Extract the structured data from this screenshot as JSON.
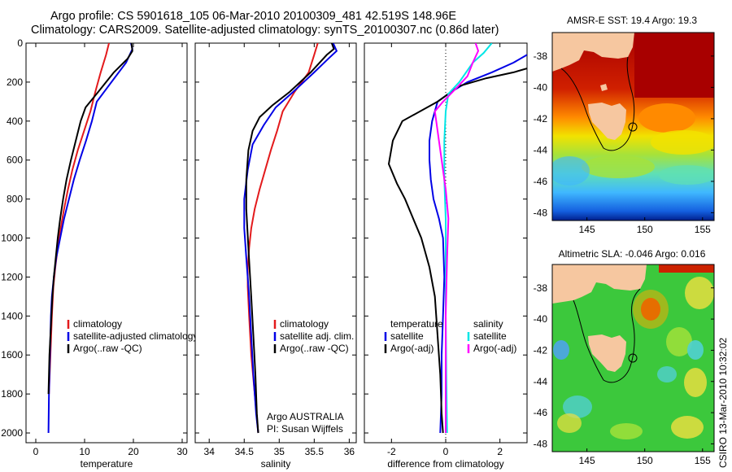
{
  "header": {
    "line1": "Argo profile: CS 5901618_105 06-Mar-2010 20100309_481 42.519S 148.96E",
    "line2": "Climatology: CARS2009. Satellite-adjusted climatology: synTS_20100307.nc (0.86d later)"
  },
  "footer": {
    "credit_line1": "Argo AUSTRALIA",
    "credit_line2": "PI: Susan Wijffels",
    "stamp": "CSIRO 13-Mar-2010 10:32:02"
  },
  "colors": {
    "climatology": "#e31a1c",
    "satellite": "#0000e6",
    "argo": "#000000",
    "salinity_satellite": "#00e6e6",
    "salinity_argo_adj": "#ff00ff",
    "land": "#f6c7a0"
  },
  "chart_data": [
    {
      "type": "line",
      "xlabel": "temperature",
      "xlim": [
        -2,
        31
      ],
      "ylim": [
        0,
        2050
      ],
      "y_reversed": true,
      "xticks": [
        "0",
        "10",
        "20",
        "30"
      ],
      "yticks": [
        "0",
        "200",
        "400",
        "600",
        "800",
        "1000",
        "1200",
        "1400",
        "1600",
        "1800",
        "2000"
      ],
      "legend_position": "bottom-right",
      "series": [
        {
          "name": "climatology",
          "color_key": "climatology",
          "points": [
            [
              15,
              0
            ],
            [
              14.4,
              60
            ],
            [
              13.3,
              150
            ],
            [
              12.2,
              250
            ],
            [
              11.2,
              350
            ],
            [
              9.9,
              450
            ],
            [
              8.6,
              550
            ],
            [
              7.5,
              650
            ],
            [
              6.6,
              750
            ],
            [
              5.8,
              850
            ],
            [
              5.1,
              950
            ],
            [
              4.5,
              1050
            ],
            [
              4,
              1150
            ],
            [
              3.6,
              1250
            ],
            [
              3.3,
              1400
            ],
            [
              3,
              1600
            ],
            [
              2.7,
              1800
            ]
          ]
        },
        {
          "name": "satellite-adjusted climatology",
          "color_key": "satellite",
          "points": [
            [
              19.5,
              0
            ],
            [
              19.8,
              30
            ],
            [
              18.5,
              100
            ],
            [
              15.5,
              200
            ],
            [
              12.5,
              300
            ],
            [
              11.5,
              400
            ],
            [
              10.3,
              500
            ],
            [
              9,
              600
            ],
            [
              7.8,
              700
            ],
            [
              6.8,
              800
            ],
            [
              5.8,
              900
            ],
            [
              5,
              1000
            ],
            [
              4.2,
              1100
            ],
            [
              3.7,
              1200
            ],
            [
              3.3,
              1300
            ],
            [
              3.1,
              1400
            ],
            [
              2.9,
              1600
            ],
            [
              2.7,
              1800
            ],
            [
              2.6,
              2000
            ]
          ]
        },
        {
          "name": "Argo(..raw -QC)",
          "color_key": "argo",
          "points": [
            [
              19.6,
              0
            ],
            [
              19.8,
              40
            ],
            [
              18.8,
              80
            ],
            [
              16,
              150
            ],
            [
              12.8,
              250
            ],
            [
              10.2,
              330
            ],
            [
              9.2,
              400
            ],
            [
              8.2,
              500
            ],
            [
              7.2,
              600
            ],
            [
              6.3,
              700
            ],
            [
              5.6,
              800
            ],
            [
              5,
              900
            ],
            [
              4.5,
              1000
            ],
            [
              4.1,
              1100
            ],
            [
              3.7,
              1200
            ],
            [
              3.4,
              1300
            ],
            [
              3.2,
              1400
            ],
            [
              3,
              1500
            ],
            [
              2.8,
              1600
            ],
            [
              2.7,
              1700
            ],
            [
              2.6,
              1800
            ]
          ]
        }
      ]
    },
    {
      "type": "line",
      "xlabel": "salinity",
      "xlim": [
        33.8,
        36.1
      ],
      "ylim": [
        0,
        2050
      ],
      "y_reversed": true,
      "xticks": [
        "34",
        "34.5",
        "35",
        "35.5",
        "36"
      ],
      "legend_position": "bottom-right",
      "series": [
        {
          "name": "climatology",
          "color_key": "climatology",
          "points": [
            [
              35.55,
              0
            ],
            [
              35.5,
              60
            ],
            [
              35.42,
              150
            ],
            [
              35.22,
              250
            ],
            [
              35.05,
              350
            ],
            [
              34.97,
              450
            ],
            [
              34.88,
              550
            ],
            [
              34.8,
              650
            ],
            [
              34.72,
              750
            ],
            [
              34.65,
              850
            ],
            [
              34.6,
              950
            ],
            [
              34.57,
              1050
            ],
            [
              34.55,
              1150
            ],
            [
              34.55,
              1250
            ],
            [
              34.57,
              1400
            ],
            [
              34.6,
              1600
            ],
            [
              34.65,
              1800
            ],
            [
              34.7,
              2000
            ]
          ]
        },
        {
          "name": "satellite adj. clim.",
          "color_key": "satellite",
          "points": [
            [
              35.77,
              0
            ],
            [
              35.82,
              40
            ],
            [
              35.7,
              80
            ],
            [
              35.5,
              150
            ],
            [
              35.2,
              250
            ],
            [
              34.95,
              330
            ],
            [
              34.78,
              420
            ],
            [
              34.62,
              520
            ],
            [
              34.55,
              650
            ],
            [
              34.5,
              800
            ],
            [
              34.5,
              950
            ],
            [
              34.53,
              1100
            ],
            [
              34.57,
              1300
            ],
            [
              34.6,
              1500
            ],
            [
              34.63,
              1700
            ],
            [
              34.67,
              1900
            ],
            [
              34.7,
              2000
            ]
          ]
        },
        {
          "name": "Argo(..raw -QC)",
          "color_key": "argo",
          "points": [
            [
              35.75,
              0
            ],
            [
              35.78,
              30
            ],
            [
              35.68,
              60
            ],
            [
              35.45,
              150
            ],
            [
              35.15,
              250
            ],
            [
              34.9,
              320
            ],
            [
              34.72,
              380
            ],
            [
              34.62,
              450
            ],
            [
              34.56,
              550
            ],
            [
              34.53,
              700
            ],
            [
              34.53,
              850
            ],
            [
              34.56,
              1050
            ],
            [
              34.6,
              1300
            ],
            [
              34.63,
              1500
            ],
            [
              34.66,
              1700
            ],
            [
              34.68,
              1900
            ],
            [
              34.7,
              2000
            ]
          ]
        }
      ]
    },
    {
      "type": "line",
      "xlabel": "difference from climatology",
      "xlim": [
        -3,
        3
      ],
      "ylim": [
        0,
        2050
      ],
      "y_reversed": true,
      "xticks": [
        "-2",
        "0",
        "2"
      ],
      "legend_position": "bottom",
      "legend_groups": [
        "temperature",
        "salinity"
      ],
      "series": [
        {
          "name": "satellite",
          "group": "temperature",
          "color_key": "satellite",
          "points": [
            [
              3,
              60
            ],
            [
              2.5,
              100
            ],
            [
              1.7,
              150
            ],
            [
              0.8,
              200
            ],
            [
              0.2,
              250
            ],
            [
              -0.3,
              300
            ],
            [
              -0.5,
              400
            ],
            [
              -0.6,
              500
            ],
            [
              -0.6,
              600
            ],
            [
              -0.55,
              700
            ],
            [
              -0.45,
              800
            ],
            [
              -0.25,
              900
            ],
            [
              -0.1,
              1000
            ],
            [
              -0.05,
              1200
            ],
            [
              -0.1,
              1400
            ],
            [
              -0.15,
              1600
            ],
            [
              -0.15,
              1800
            ],
            [
              -0.2,
              2000
            ]
          ]
        },
        {
          "name": "Argo(-adj)",
          "group": "temperature",
          "color_key": "argo",
          "points": [
            [
              3,
              130
            ],
            [
              2.5,
              150
            ],
            [
              1.5,
              180
            ],
            [
              0.5,
              220
            ],
            [
              -0.3,
              300
            ],
            [
              -1.6,
              400
            ],
            [
              -1.95,
              500
            ],
            [
              -2.1,
              620
            ],
            [
              -1.8,
              720
            ],
            [
              -1.5,
              800
            ],
            [
              -1.2,
              900
            ],
            [
              -0.9,
              1000
            ],
            [
              -0.6,
              1150
            ],
            [
              -0.4,
              1300
            ],
            [
              -0.3,
              1500
            ],
            [
              -0.2,
              1700
            ],
            [
              -0.15,
              1900
            ],
            [
              -0.1,
              2000
            ]
          ]
        },
        {
          "name": "satellite",
          "group": "salinity",
          "color_key": "salinity_satellite",
          "points": [
            [
              1.7,
              0
            ],
            [
              1.4,
              50
            ],
            [
              1,
              100
            ],
            [
              0.5,
              200
            ],
            [
              0.1,
              260
            ],
            [
              0,
              350
            ],
            [
              -0.05,
              500
            ],
            [
              -0.05,
              700
            ],
            [
              0,
              900
            ],
            [
              0,
              1100
            ],
            [
              0,
              1400
            ],
            [
              0.02,
              1700
            ],
            [
              0.05,
              2000
            ]
          ]
        },
        {
          "name": "Argo(-adj)",
          "group": "salinity",
          "color_key": "salinity_argo_adj",
          "points": [
            [
              1.1,
              0
            ],
            [
              1.2,
              40
            ],
            [
              1,
              100
            ],
            [
              0.8,
              170
            ],
            [
              0.4,
              230
            ],
            [
              -0.1,
              300
            ],
            [
              -0.4,
              350
            ],
            [
              -0.3,
              450
            ],
            [
              -0.15,
              600
            ],
            [
              0,
              750
            ],
            [
              0.1,
              900
            ],
            [
              0.05,
              1100
            ],
            [
              0,
              1400
            ],
            [
              0,
              1700
            ],
            [
              0,
              2000
            ]
          ]
        }
      ]
    },
    {
      "type": "heatmap",
      "title": "AMSR-E SST: 19.4 Argo: 19.3",
      "xlim": [
        142,
        156
      ],
      "ylim": [
        -48.5,
        -36.5
      ],
      "xticks": [
        "145",
        "150",
        "155"
      ],
      "yticks": [
        "-38",
        "-40",
        "-42",
        "-44",
        "-46",
        "-48"
      ],
      "argo_position": [
        148.96,
        -42.519
      ]
    },
    {
      "type": "heatmap",
      "title": "Altimetric SLA: -0.046 Argo: 0.016",
      "xlim": [
        142,
        156
      ],
      "ylim": [
        -48.5,
        -36.5
      ],
      "xticks": [
        "145",
        "150",
        "155"
      ],
      "yticks": [
        "-38",
        "-40",
        "-42",
        "-44",
        "-46",
        "-48"
      ],
      "argo_position": [
        148.96,
        -42.519
      ]
    }
  ]
}
